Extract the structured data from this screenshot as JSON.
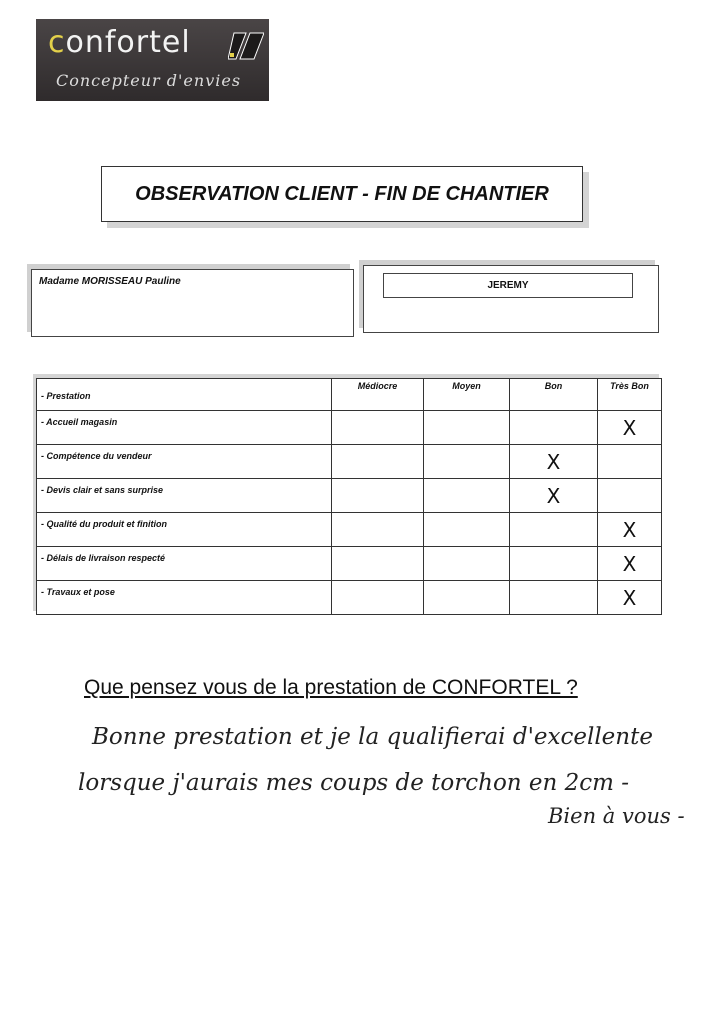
{
  "logo": {
    "brand": "confortel",
    "tagline": "Concepteur d'envies"
  },
  "title": "OBSERVATION CLIENT - FIN DE CHANTIER",
  "client_name": "Madame MORISSEAU Pauline",
  "seller_name": "JEREMY",
  "table": {
    "headers": [
      "- Prestation",
      "Médiocre",
      "Moyen",
      "Bon",
      "Très Bon"
    ],
    "mark_symbol": "X",
    "rows": [
      {
        "label": "- Accueil magasin",
        "rating": "Très Bon"
      },
      {
        "label": "- Compétence du vendeur",
        "rating": "Bon"
      },
      {
        "label": "- Devis clair et sans surprise",
        "rating": "Bon"
      },
      {
        "label": "- Qualité du produit et finition",
        "rating": "Très Bon"
      },
      {
        "label": "- Délais de livraison respecté",
        "rating": "Très Bon"
      },
      {
        "label": "- Travaux et pose",
        "rating": "Très Bon"
      }
    ]
  },
  "question": "Que pensez vous de la prestation de CONFORTEL ?",
  "answer": {
    "line1": "Bonne prestation et je la qualifierai d'excellente",
    "line2": "lorsque j'aurais mes coups de torchon en 2cm -",
    "line3": "Bien à vous -"
  }
}
